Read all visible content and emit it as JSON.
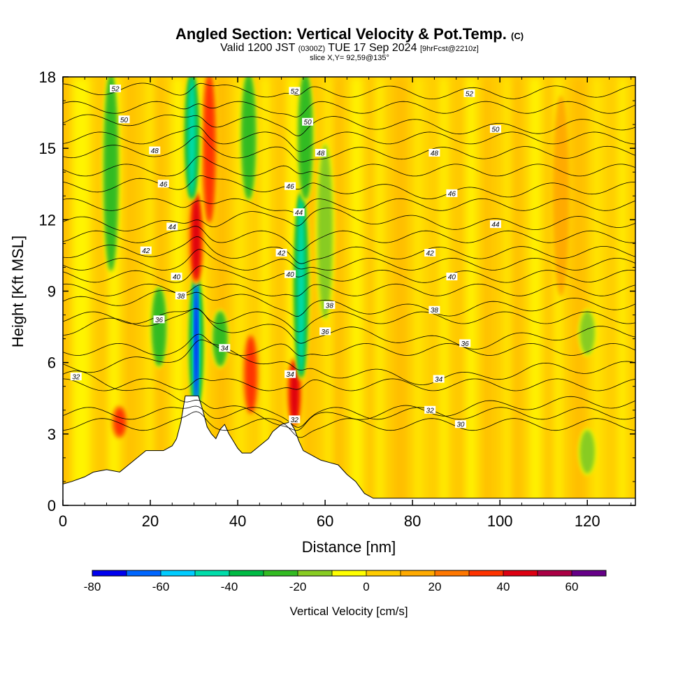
{
  "title": {
    "main": "Angled Section: Vertical Velocity & Pot.Temp.",
    "main_suffix": "(C)",
    "valid_prefix": "Valid 1200 JST",
    "valid_utc": "(0300Z)",
    "valid_date": "TUE 17 Sep 2024",
    "forecast": "[9hrFcst@2210z]",
    "slice": "slice X,Y= 92,59@135°"
  },
  "chart_data": {
    "type": "contour",
    "xlabel": "Distance [nm]",
    "ylabel": "Height [Kft MSL]",
    "xlim": [
      0,
      131
    ],
    "ylim": [
      0,
      18
    ],
    "x_ticks": [
      0,
      20,
      40,
      60,
      80,
      100,
      120
    ],
    "y_ticks": [
      0,
      3,
      6,
      9,
      12,
      15,
      18
    ],
    "terrain": [
      [
        0,
        0.9
      ],
      [
        2,
        1
      ],
      [
        5,
        1.2
      ],
      [
        7,
        1.4
      ],
      [
        10,
        1.5
      ],
      [
        13,
        1.4
      ],
      [
        15,
        1.7
      ],
      [
        17,
        2
      ],
      [
        19,
        2.3
      ],
      [
        23,
        2.3
      ],
      [
        25,
        2.5
      ],
      [
        26,
        2.8
      ],
      [
        27,
        3.5
      ],
      [
        28,
        4.6
      ],
      [
        31,
        4.6
      ],
      [
        32,
        4
      ],
      [
        33,
        3.3
      ],
      [
        34,
        3
      ],
      [
        35,
        2.8
      ],
      [
        36,
        3.2
      ],
      [
        37,
        3.4
      ],
      [
        38,
        3
      ],
      [
        39,
        2.7
      ],
      [
        40,
        2.4
      ],
      [
        41,
        2.2
      ],
      [
        43,
        2.2
      ],
      [
        45,
        2.5
      ],
      [
        47,
        2.8
      ],
      [
        48,
        3.1
      ],
      [
        50,
        3.4
      ],
      [
        52,
        3.5
      ],
      [
        53,
        3.2
      ],
      [
        54,
        2.7
      ],
      [
        55,
        2.3
      ],
      [
        57,
        2.1
      ],
      [
        59,
        1.9
      ],
      [
        61,
        1.8
      ],
      [
        63,
        1.7
      ],
      [
        65,
        1.3
      ],
      [
        67,
        1
      ],
      [
        69,
        0.5
      ],
      [
        71,
        0.3
      ],
      [
        131,
        0.3
      ]
    ],
    "theta_contours": [
      {
        "value": 30,
        "label": "30",
        "x": 91,
        "y": 3.4
      },
      {
        "value": 32,
        "label": "32",
        "x": 3,
        "y": 5.4
      },
      {
        "value": 32,
        "label": "32",
        "x": 53,
        "y": 3.6
      },
      {
        "value": 32,
        "label": "32",
        "x": 84,
        "y": 4.0
      },
      {
        "value": 34,
        "label": "34",
        "x": 37,
        "y": 6.6
      },
      {
        "value": 34,
        "label": "34",
        "x": 52,
        "y": 5.5
      },
      {
        "value": 34,
        "label": "34",
        "x": 86,
        "y": 5.3
      },
      {
        "value": 36,
        "label": "36",
        "x": 22,
        "y": 7.8
      },
      {
        "value": 36,
        "label": "36",
        "x": 60,
        "y": 7.3
      },
      {
        "value": 36,
        "label": "36",
        "x": 92,
        "y": 6.8
      },
      {
        "value": 38,
        "label": "38",
        "x": 27,
        "y": 8.8
      },
      {
        "value": 38,
        "label": "38",
        "x": 61,
        "y": 8.4
      },
      {
        "value": 38,
        "label": "38",
        "x": 85,
        "y": 8.2
      },
      {
        "value": 40,
        "label": "40",
        "x": 26,
        "y": 9.6
      },
      {
        "value": 40,
        "label": "40",
        "x": 52,
        "y": 9.7
      },
      {
        "value": 40,
        "label": "40",
        "x": 89,
        "y": 9.6
      },
      {
        "value": 42,
        "label": "42",
        "x": 19,
        "y": 10.7
      },
      {
        "value": 42,
        "label": "42",
        "x": 50,
        "y": 10.6
      },
      {
        "value": 42,
        "label": "42",
        "x": 84,
        "y": 10.6
      },
      {
        "value": 44,
        "label": "44",
        "x": 25,
        "y": 11.7
      },
      {
        "value": 44,
        "label": "44",
        "x": 54,
        "y": 12.3
      },
      {
        "value": 44,
        "label": "44",
        "x": 99,
        "y": 11.8
      },
      {
        "value": 46,
        "label": "46",
        "x": 23,
        "y": 13.5
      },
      {
        "value": 46,
        "label": "46",
        "x": 52,
        "y": 13.4
      },
      {
        "value": 46,
        "label": "46",
        "x": 89,
        "y": 13.1
      },
      {
        "value": 48,
        "label": "48",
        "x": 21,
        "y": 14.9
      },
      {
        "value": 48,
        "label": "48",
        "x": 59,
        "y": 14.8
      },
      {
        "value": 48,
        "label": "48",
        "x": 85,
        "y": 14.8
      },
      {
        "value": 50,
        "label": "50",
        "x": 14,
        "y": 16.2
      },
      {
        "value": 50,
        "label": "50",
        "x": 56,
        "y": 16.1
      },
      {
        "value": 50,
        "label": "50",
        "x": 99,
        "y": 15.8
      },
      {
        "value": 52,
        "label": "52",
        "x": 12,
        "y": 17.5
      },
      {
        "value": 52,
        "label": "52",
        "x": 53,
        "y": 17.4
      },
      {
        "value": 52,
        "label": "52",
        "x": 93,
        "y": 17.3
      }
    ],
    "velocity_features": [
      {
        "x": 30.5,
        "z0": 4.2,
        "z1": 9.5,
        "w": -75
      },
      {
        "x": 30.5,
        "z0": 9.5,
        "z1": 13,
        "w": 45
      },
      {
        "x": 33.5,
        "z0": 12,
        "z1": 18,
        "w": 35
      },
      {
        "x": 29.5,
        "z0": 13,
        "z1": 18,
        "w": -45
      },
      {
        "x": 43,
        "z0": 4,
        "z1": 7,
        "w": 40
      },
      {
        "x": 42.5,
        "z0": 13,
        "z1": 18,
        "w": -25
      },
      {
        "x": 53,
        "z0": 3.5,
        "z1": 6,
        "w": 45
      },
      {
        "x": 54.5,
        "z0": 5.5,
        "z1": 13,
        "w": -45
      },
      {
        "x": 55.5,
        "z0": 13,
        "z1": 18,
        "w": -25
      },
      {
        "x": 13,
        "z0": 3,
        "z1": 4,
        "w": 40
      },
      {
        "x": 11,
        "z0": 10,
        "z1": 18,
        "w": -25
      },
      {
        "x": 22,
        "z0": 6,
        "z1": 9,
        "w": -25
      },
      {
        "x": 36,
        "z0": 6,
        "z1": 8,
        "w": -25
      },
      {
        "x": 60,
        "z0": 8,
        "z1": 15,
        "w": -20
      },
      {
        "x": 114,
        "z0": 9,
        "z1": 17,
        "w": 15
      },
      {
        "x": 120,
        "z0": 6.5,
        "z1": 8,
        "w": -20
      },
      {
        "x": 120,
        "z0": 1.5,
        "z1": 3,
        "w": -20
      }
    ],
    "colorbar": {
      "label": "Vertical Velocity [cm/s]",
      "ticks": [
        -80,
        -60,
        -40,
        -20,
        0,
        20,
        40,
        60
      ],
      "bins": [
        -80,
        -70,
        -60,
        -50,
        -40,
        -30,
        -20,
        -10,
        0,
        10,
        20,
        30,
        40,
        50,
        60,
        70
      ],
      "colors": [
        "#0000ee",
        "#0066ff",
        "#00ccff",
        "#00ddaa",
        "#00bb44",
        "#33bb22",
        "#88cc22",
        "#ffff00",
        "#ffcc00",
        "#ffaa00",
        "#ff7700",
        "#ff3300",
        "#dd0011",
        "#aa0044",
        "#660088"
      ]
    }
  }
}
